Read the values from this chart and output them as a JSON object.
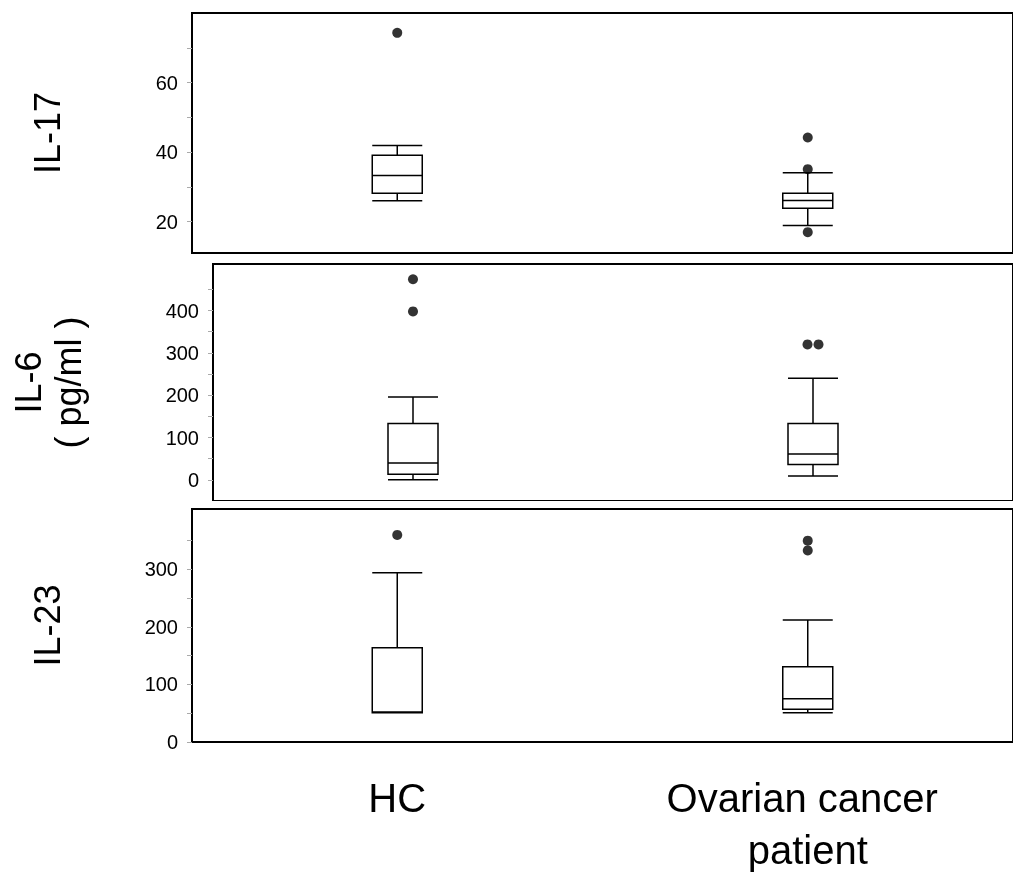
{
  "chart_data": [
    {
      "type": "box",
      "ylabel": "IL-17",
      "categories": [
        "HC",
        "Ovarian cancer patient"
      ],
      "ylim": [
        11,
        80
      ],
      "yticks": [
        20,
        {
          "value": 30,
          "label": null
        },
        40,
        {
          "value": 50,
          "label": null
        },
        60,
        {
          "value": 70,
          "label": null
        }
      ],
      "tick_labels": "y",
      "grid": false,
      "marker": "circle",
      "color": "#000000",
      "boxes": [
        {
          "low": 26,
          "q1": 28.2,
          "median": 33.3,
          "q3": 39.1,
          "high": 41.9,
          "outliers": [
            74.3
          ]
        },
        {
          "low": 18.9,
          "q1": 23.9,
          "median": 26.1,
          "q3": 28.2,
          "high": 34.1,
          "outliers": [
            44.2,
            35.1,
            17
          ]
        }
      ]
    },
    {
      "type": "box",
      "ylabel": "IL-6\n( pg/ml )",
      "categories": [
        "HC",
        "Ovarian cancer patient"
      ],
      "ylim": [
        -50,
        510
      ],
      "yticks": [
        0,
        {
          "value": 50,
          "label": null
        },
        100,
        {
          "value": 150,
          "label": null
        },
        200,
        {
          "value": 250,
          "label": null
        },
        300,
        {
          "value": 350,
          "label": null
        },
        400,
        {
          "value": 450,
          "label": null
        }
      ],
      "tick_labels": "y",
      "grid": false,
      "marker": "circle",
      "color": "#000000",
      "boxes": [
        {
          "low": 0,
          "q1": 13,
          "median": 40,
          "q3": 133,
          "high": 196,
          "outliers": [
            474,
            398
          ]
        },
        {
          "low": 9,
          "q1": 36,
          "median": 61,
          "q3": 133,
          "high": 240,
          "outliers": [
            320,
            320
          ]
        }
      ]
    },
    {
      "type": "box",
      "ylabel": "IL-23",
      "categories": [
        "HC",
        "Ovarian cancer patient"
      ],
      "ylim": [
        0,
        405
      ],
      "yticks": [
        0,
        {
          "value": 50,
          "label": null
        },
        100,
        {
          "value": 150,
          "label": null
        },
        200,
        {
          "value": 250,
          "label": null
        },
        300,
        {
          "value": 350,
          "label": null
        }
      ],
      "grid": false,
      "marker": "circle",
      "color": "#000000",
      "boxes": [
        {
          "low": 51,
          "q1": 51,
          "median": 52,
          "q3": 164,
          "high": 294,
          "outliers": [
            360
          ]
        },
        {
          "low": 51,
          "q1": 57,
          "median": 75,
          "q3": 131,
          "high": 212,
          "outliers": [
            350,
            333
          ]
        }
      ]
    }
  ]
}
